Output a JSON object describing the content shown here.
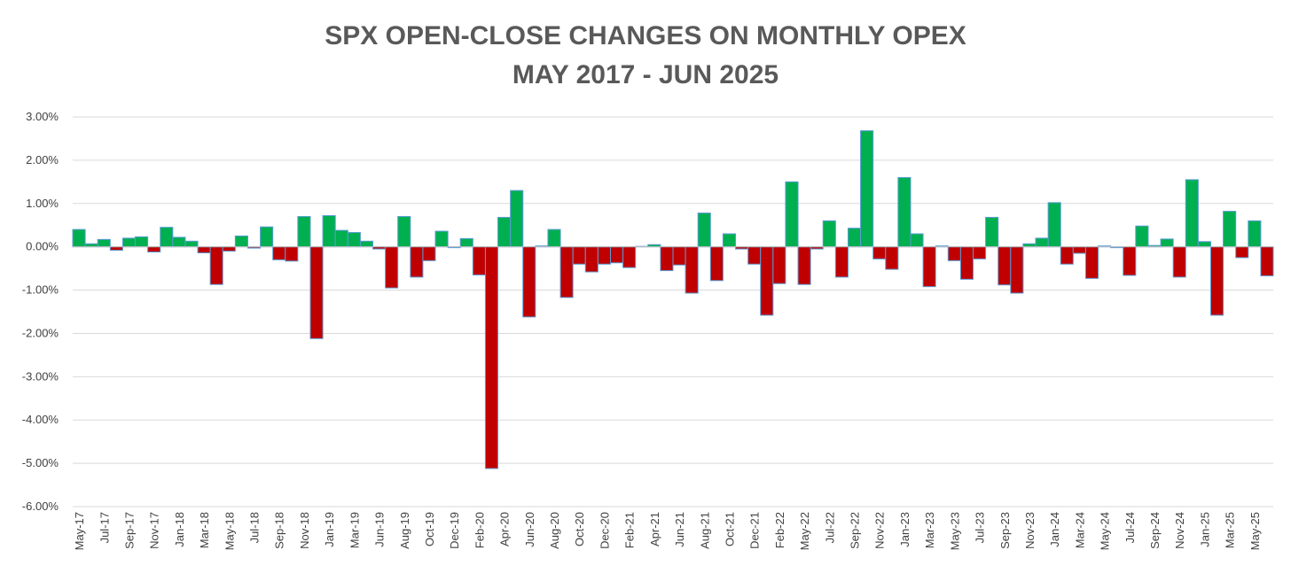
{
  "chart_data": {
    "type": "bar",
    "title": "SPX OPEN-CLOSE CHANGES ON MONTHLY OPEX",
    "subtitle": "MAY 2017 - JUN 2025",
    "categories": [
      "May-17",
      null,
      "Jul-17",
      null,
      "Sep-17",
      null,
      "Nov-17",
      null,
      "Jan-18",
      null,
      "Mar-18",
      null,
      "May-18",
      null,
      "Jul-18",
      null,
      "Sep-18",
      null,
      "Nov-18",
      null,
      "Jan-19",
      null,
      "Mar-19",
      null,
      "Jun-19",
      null,
      "Aug-19",
      null,
      "Oct-19",
      null,
      "Dec-19",
      null,
      "Feb-20",
      null,
      "Apr-20",
      null,
      "Jun-20",
      null,
      "Aug-20",
      null,
      "Oct-20",
      null,
      "Dec-20",
      null,
      "Feb-21",
      null,
      "Apr-21",
      null,
      "Jun-21",
      null,
      "Aug-21",
      null,
      "Oct-21",
      null,
      "Dec-21",
      null,
      "Feb-22",
      null,
      "May-22",
      null,
      "Jul-22",
      null,
      "Sep-22",
      null,
      "Nov-22",
      null,
      "Jan-23",
      null,
      "Mar-23",
      null,
      "May-23",
      null,
      "Jul-23",
      null,
      "Sep-23",
      null,
      "Nov-23",
      null,
      "Jan-24",
      null,
      "Mar-24",
      null,
      "May-24",
      null,
      "Jul-24",
      null,
      "Sep-24",
      null,
      "Nov-24",
      null,
      "Jan-25",
      null,
      "Mar-25",
      null,
      "May-25",
      null
    ],
    "values": [
      0.4,
      0.07,
      0.17,
      -0.08,
      0.2,
      0.23,
      -0.12,
      0.45,
      0.22,
      0.13,
      -0.14,
      -0.87,
      -0.1,
      0.25,
      -0.03,
      0.46,
      -0.3,
      -0.33,
      0.7,
      -2.12,
      0.72,
      0.38,
      0.33,
      0.13,
      -0.05,
      -0.95,
      0.7,
      -0.7,
      -0.32,
      0.36,
      -0.02,
      0.19,
      -0.65,
      -5.12,
      0.68,
      1.3,
      -1.62,
      0.02,
      0.4,
      -1.17,
      -0.4,
      -0.58,
      -0.4,
      -0.37,
      -0.48,
      0.01,
      0.05,
      -0.55,
      -0.42,
      -1.07,
      0.78,
      -0.78,
      0.3,
      -0.05,
      -0.4,
      -1.58,
      -0.85,
      1.5,
      -0.87,
      -0.05,
      0.6,
      -0.7,
      0.43,
      2.68,
      -0.28,
      -0.52,
      1.6,
      0.3,
      -0.92,
      0.02,
      -0.32,
      -0.75,
      -0.28,
      0.68,
      -0.88,
      -1.07,
      0.07,
      0.2,
      1.02,
      -0.4,
      -0.15,
      -0.73,
      0.02,
      -0.02,
      -0.66,
      0.48,
      0.03,
      0.18,
      -0.7,
      1.55,
      0.12,
      -1.58,
      0.82,
      -0.25,
      0.6,
      -0.67
    ],
    "color": "#00b050",
    "negative_color": "#c00000",
    "edge_color": "#5b9bd5",
    "ylim": [
      -6,
      3
    ],
    "yticks": [
      {
        "value": -6,
        "label": "-6.00%"
      },
      {
        "value": -5,
        "label": "-5.00%"
      },
      {
        "value": -4,
        "label": "-4.00%"
      },
      {
        "value": -3,
        "label": "-3.00%"
      },
      {
        "value": -2,
        "label": "-2.00%"
      },
      {
        "value": -1,
        "label": "-1.00%"
      },
      {
        "value": 0,
        "label": "0.00%"
      },
      {
        "value": 1,
        "label": "1.00%"
      },
      {
        "value": 2,
        "label": "2.00%"
      },
      {
        "value": 3,
        "label": "3.00%"
      }
    ],
    "grid": true
  }
}
